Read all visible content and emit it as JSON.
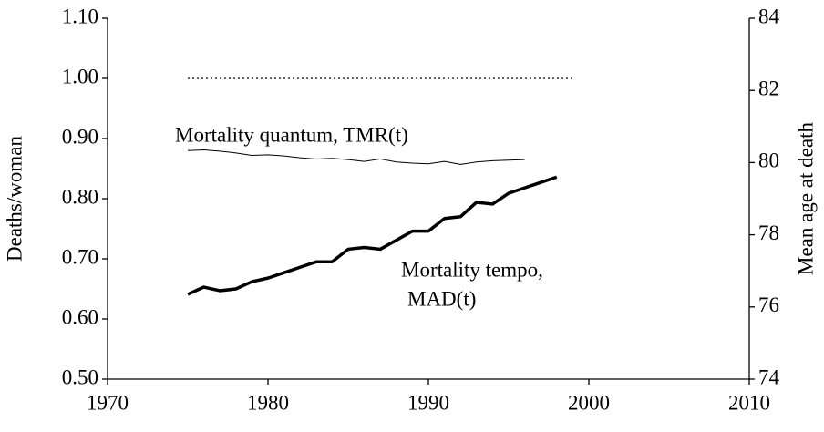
{
  "chart_data": {
    "type": "line",
    "y_label": "Deaths/woman",
    "y2_label": "Mean age at death",
    "xlim": [
      1970,
      2010
    ],
    "xticks": [
      1970,
      1980,
      1990,
      2000,
      2010
    ],
    "ylim": [
      0.5,
      1.1
    ],
    "yticks": [
      {
        "value": 0.5,
        "label": "0.50"
      },
      {
        "value": 0.6,
        "label": "0.60"
      },
      {
        "value": 0.7,
        "label": "0.70"
      },
      {
        "value": 0.8,
        "label": "0.80"
      },
      {
        "value": 0.9,
        "label": "0.90"
      },
      {
        "value": 1.0,
        "label": "1.00"
      },
      {
        "value": 1.1,
        "label": "1.10"
      }
    ],
    "y2lim": [
      74,
      84
    ],
    "y2ticks": [
      74,
      76,
      78,
      80,
      82,
      84
    ],
    "grid": false,
    "series": [
      {
        "color": "#000000",
        "style": "dotted",
        "x": [
          1975,
          1999
        ],
        "values": [
          1.0,
          1.0
        ]
      },
      {
        "color": "#000000",
        "style": "thin",
        "x": [
          1975,
          1976,
          1977,
          1978,
          1979,
          1980,
          1981,
          1982,
          1983,
          1984,
          1985,
          1986,
          1987,
          1988,
          1989,
          1990,
          1991,
          1992,
          1993,
          1994,
          1995,
          1996
        ],
        "values": [
          0.88,
          0.881,
          0.879,
          0.876,
          0.872,
          0.873,
          0.871,
          0.868,
          0.866,
          0.867,
          0.865,
          0.862,
          0.866,
          0.861,
          0.859,
          0.858,
          0.862,
          0.857,
          0.861,
          0.863,
          0.864,
          0.865
        ]
      },
      {
        "color": "#000000",
        "style": "thick",
        "axis": "y2",
        "x": [
          1975,
          1976,
          1977,
          1978,
          1979,
          1980,
          1981,
          1982,
          1983,
          1984,
          1985,
          1986,
          1987,
          1988,
          1989,
          1990,
          1991,
          1992,
          1993,
          1994,
          1995,
          1996,
          1997,
          1998
        ],
        "values": [
          76.35,
          76.55,
          76.45,
          76.5,
          76.7,
          76.8,
          76.95,
          77.1,
          77.25,
          77.25,
          77.6,
          77.65,
          77.6,
          77.85,
          78.1,
          78.1,
          78.45,
          78.5,
          78.9,
          78.85,
          79.15,
          79.3,
          79.45,
          79.6
        ]
      }
    ],
    "annotations": [
      {
        "text": "Mortality quantum, TMR(t)"
      },
      {
        "text": "Mortality tempo,"
      },
      {
        "text": "MAD(t)"
      }
    ]
  }
}
